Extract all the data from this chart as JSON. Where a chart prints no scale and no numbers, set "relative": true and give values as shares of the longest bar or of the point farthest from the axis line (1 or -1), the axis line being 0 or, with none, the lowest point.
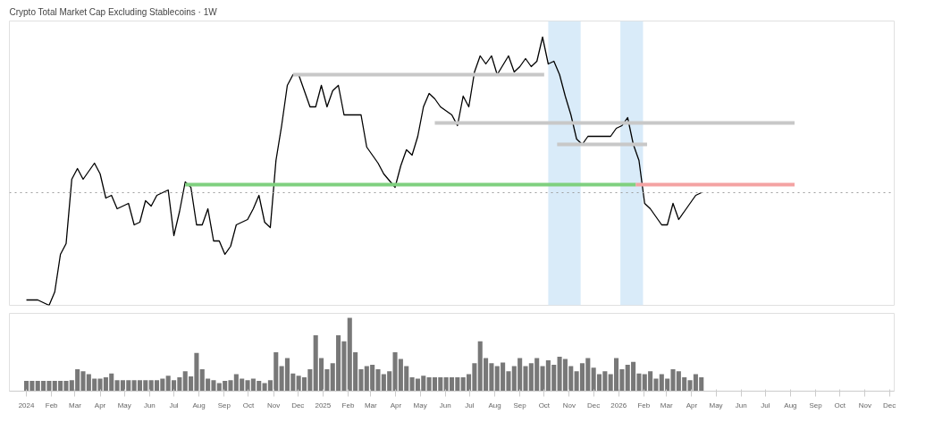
{
  "chart_data": [
    {
      "type": "line",
      "title": "Crypto Total Market Cap Excluding Stablecoins · 1W",
      "relative": true,
      "xlim": [
        "2023-12-11",
        "2026-12-07"
      ],
      "tick_labels": false,
      "series": [
        {
          "color": "#000000",
          "x": [
            "2024-01-01",
            "2024-01-15",
            "2024-01-29",
            "2024-02-05",
            "2024-02-12",
            "2024-02-19",
            "2024-02-26",
            "2024-03-04",
            "2024-03-11",
            "2024-03-25",
            "2024-04-01",
            "2024-04-08",
            "2024-04-15",
            "2024-04-22",
            "2024-05-06",
            "2024-05-13",
            "2024-05-20",
            "2024-05-27",
            "2024-06-03",
            "2024-06-10",
            "2024-06-24",
            "2024-07-01",
            "2024-07-08",
            "2024-07-15",
            "2024-07-22",
            "2024-07-29",
            "2024-08-05",
            "2024-08-12",
            "2024-08-19",
            "2024-08-26",
            "2024-09-02",
            "2024-09-09",
            "2024-09-16",
            "2024-09-30",
            "2024-10-07",
            "2024-10-14",
            "2024-10-21",
            "2024-10-28",
            "2024-11-04",
            "2024-11-11",
            "2024-11-18",
            "2024-11-25",
            "2024-12-02",
            "2024-12-16",
            "2024-12-23",
            "2024-12-30",
            "2025-01-06",
            "2025-01-13",
            "2025-01-20",
            "2025-01-27",
            "2025-02-03",
            "2025-02-17",
            "2025-02-24",
            "2025-03-03",
            "2025-03-10",
            "2025-03-17",
            "2025-03-31",
            "2025-04-07",
            "2025-04-14",
            "2025-04-21",
            "2025-04-28",
            "2025-05-05",
            "2025-05-12",
            "2025-05-19",
            "2025-05-26",
            "2025-06-09",
            "2025-06-16",
            "2025-06-23",
            "2025-06-30",
            "2025-07-07",
            "2025-07-14",
            "2025-07-21",
            "2025-07-28",
            "2025-08-04",
            "2025-08-18",
            "2025-08-25",
            "2025-09-01",
            "2025-09-08",
            "2025-09-15",
            "2025-09-22",
            "2025-09-29",
            "2025-10-06",
            "2025-10-13",
            "2025-10-20",
            "2025-10-27",
            "2025-11-03",
            "2025-11-10",
            "2025-11-17",
            "2025-11-24",
            "2025-12-01",
            "2025-12-15",
            "2025-12-22",
            "2025-12-29",
            "2026-01-05",
            "2026-01-12",
            "2026-01-19",
            "2026-01-26",
            "2026-02-02",
            "2026-02-09",
            "2026-02-16",
            "2026-02-23",
            "2026-03-02",
            "2026-03-09",
            "2026-03-16",
            "2026-03-23",
            "2026-03-30",
            "2026-04-06",
            "2026-04-13"
          ],
          "values": [
            0.02,
            0.02,
            0,
            0.05,
            0.19,
            0.23,
            0.47,
            0.51,
            0.47,
            0.53,
            0.49,
            0.4,
            0.41,
            0.36,
            0.38,
            0.3,
            0.31,
            0.39,
            0.37,
            0.41,
            0.43,
            0.26,
            0.35,
            0.46,
            0.44,
            0.3,
            0.3,
            0.36,
            0.24,
            0.24,
            0.19,
            0.22,
            0.3,
            0.32,
            0.36,
            0.41,
            0.31,
            0.29,
            0.54,
            0.67,
            0.82,
            0.86,
            0.86,
            0.74,
            0.74,
            0.82,
            0.74,
            0.8,
            0.82,
            0.71,
            0.71,
            0.71,
            0.59,
            0.56,
            0.53,
            0.49,
            0.44,
            0.52,
            0.58,
            0.56,
            0.63,
            0.74,
            0.79,
            0.77,
            0.74,
            0.71,
            0.67,
            0.78,
            0.74,
            0.87,
            0.93,
            0.9,
            0.93,
            0.86,
            0.93,
            0.87,
            0.89,
            0.92,
            0.89,
            0.91,
            1,
            0.9,
            0.91,
            0.86,
            0.78,
            0.71,
            0.62,
            0.6,
            0.63,
            0.63,
            0.63,
            0.63,
            0.66,
            0.67,
            0.7,
            0.6,
            0.54,
            0.38,
            0.36,
            0.33,
            0.3,
            0.3,
            0.38,
            0.32,
            0.35,
            0.38,
            0.41,
            0.42
          ]
        },
        {
          "color": "#7fd07f",
          "x": [
            "2024-07-15",
            "2026-01-22"
          ],
          "values": [
            0.45,
            0.45
          ]
        },
        {
          "color": "#f4a3a3",
          "x": [
            "2026-01-22",
            "2026-08-06"
          ],
          "values": [
            0.45,
            0.45
          ]
        },
        {
          "color": "#c8c8c8",
          "x": [
            "2024-11-25",
            "2025-10-01"
          ],
          "values": [
            0.86,
            0.86
          ]
        },
        {
          "color": "#c8c8c8",
          "x": [
            "2025-05-19",
            "2026-08-06"
          ],
          "values": [
            0.68,
            0.68
          ]
        },
        {
          "color": "#c8c8c8",
          "x": [
            "2025-10-17",
            "2026-02-05"
          ],
          "values": [
            0.6,
            0.6
          ]
        }
      ],
      "ref_lines": [
        {
          "axis": "y",
          "value": 0.42,
          "color": "#9e9e9e",
          "line_style": "dotted"
        }
      ],
      "bands": [
        {
          "axis": "x",
          "from": "2025-10-06",
          "to": "2025-11-15",
          "color": "#cfe6f7"
        },
        {
          "axis": "x",
          "from": "2026-01-03",
          "to": "2026-01-31",
          "color": "#cfe6f7"
        }
      ]
    },
    {
      "type": "bar",
      "relative": true,
      "xlim": [
        "2023-12-11",
        "2026-12-07"
      ],
      "tick_labels": "x",
      "xticks": [
        {
          "value": "2024-01-01",
          "label": "2024"
        },
        {
          "value": "2024-02-01",
          "label": "Feb"
        },
        {
          "value": "2024-03-01",
          "label": "Mar"
        },
        {
          "value": "2024-04-01",
          "label": "Apr"
        },
        {
          "value": "2024-05-01",
          "label": "May"
        },
        {
          "value": "2024-06-01",
          "label": "Jun"
        },
        {
          "value": "2024-07-01",
          "label": "Jul"
        },
        {
          "value": "2024-08-01",
          "label": "Aug"
        },
        {
          "value": "2024-09-01",
          "label": "Sep"
        },
        {
          "value": "2024-10-01",
          "label": "Oct"
        },
        {
          "value": "2024-11-01",
          "label": "Nov"
        },
        {
          "value": "2024-12-01",
          "label": "Dec"
        },
        {
          "value": "2025-01-01",
          "label": "2025"
        },
        {
          "value": "2025-02-01",
          "label": "Feb"
        },
        {
          "value": "2025-03-01",
          "label": "Mar"
        },
        {
          "value": "2025-04-01",
          "label": "Apr"
        },
        {
          "value": "2025-05-01",
          "label": "May"
        },
        {
          "value": "2025-06-01",
          "label": "Jun"
        },
        {
          "value": "2025-07-01",
          "label": "Jul"
        },
        {
          "value": "2025-08-01",
          "label": "Aug"
        },
        {
          "value": "2025-09-01",
          "label": "Sep"
        },
        {
          "value": "2025-10-01",
          "label": "Oct"
        },
        {
          "value": "2025-11-01",
          "label": "Nov"
        },
        {
          "value": "2025-12-01",
          "label": "Dec"
        },
        {
          "value": "2026-01-01",
          "label": "2026"
        },
        {
          "value": "2026-02-01",
          "label": "Feb"
        },
        {
          "value": "2026-03-01",
          "label": "Mar"
        },
        {
          "value": "2026-04-01",
          "label": "Apr"
        },
        {
          "value": "2026-05-01",
          "label": "May"
        },
        {
          "value": "2026-06-01",
          "label": "Jun"
        },
        {
          "value": "2026-07-01",
          "label": "Jul"
        },
        {
          "value": "2026-08-01",
          "label": "Aug"
        },
        {
          "value": "2026-09-01",
          "label": "Sep"
        },
        {
          "value": "2026-10-01",
          "label": "Oct"
        },
        {
          "value": "2026-11-01",
          "label": "Nov"
        },
        {
          "value": "2026-12-01",
          "label": "Dec"
        }
      ],
      "series": [
        {
          "color": "#787878",
          "x": [
            "2024-01-01",
            "2024-01-08",
            "2024-01-15",
            "2024-01-22",
            "2024-01-29",
            "2024-02-05",
            "2024-02-12",
            "2024-02-19",
            "2024-02-26",
            "2024-03-04",
            "2024-03-11",
            "2024-03-18",
            "2024-03-25",
            "2024-04-01",
            "2024-04-08",
            "2024-04-15",
            "2024-04-22",
            "2024-04-29",
            "2024-05-06",
            "2024-05-13",
            "2024-05-20",
            "2024-05-27",
            "2024-06-03",
            "2024-06-10",
            "2024-06-17",
            "2024-06-24",
            "2024-07-01",
            "2024-07-08",
            "2024-07-15",
            "2024-07-22",
            "2024-07-29",
            "2024-08-05",
            "2024-08-12",
            "2024-08-19",
            "2024-08-26",
            "2024-09-02",
            "2024-09-09",
            "2024-09-16",
            "2024-09-23",
            "2024-09-30",
            "2024-10-07",
            "2024-10-14",
            "2024-10-21",
            "2024-10-28",
            "2024-11-04",
            "2024-11-11",
            "2024-11-18",
            "2024-11-25",
            "2024-12-02",
            "2024-12-09",
            "2024-12-16",
            "2024-12-23",
            "2024-12-30",
            "2025-01-06",
            "2025-01-13",
            "2025-01-20",
            "2025-01-27",
            "2025-02-03",
            "2025-02-10",
            "2025-02-17",
            "2025-02-24",
            "2025-03-03",
            "2025-03-10",
            "2025-03-17",
            "2025-03-24",
            "2025-03-31",
            "2025-04-07",
            "2025-04-14",
            "2025-04-21",
            "2025-04-28",
            "2025-05-05",
            "2025-05-12",
            "2025-05-19",
            "2025-05-26",
            "2025-06-02",
            "2025-06-09",
            "2025-06-16",
            "2025-06-23",
            "2025-06-30",
            "2025-07-07",
            "2025-07-14",
            "2025-07-21",
            "2025-07-28",
            "2025-08-04",
            "2025-08-11",
            "2025-08-18",
            "2025-08-25",
            "2025-09-01",
            "2025-09-08",
            "2025-09-15",
            "2025-09-22",
            "2025-09-29",
            "2025-10-06",
            "2025-10-13",
            "2025-10-20",
            "2025-10-27",
            "2025-11-03",
            "2025-11-10",
            "2025-11-17",
            "2025-11-24",
            "2025-12-01",
            "2025-12-08",
            "2025-12-15",
            "2025-12-22",
            "2025-12-29",
            "2026-01-05",
            "2026-01-12",
            "2026-01-19",
            "2026-01-26",
            "2026-02-02",
            "2026-02-09",
            "2026-02-16",
            "2026-02-23",
            "2026-03-02",
            "2026-03-09",
            "2026-03-16",
            "2026-03-23",
            "2026-03-30",
            "2026-04-06",
            "2026-04-13"
          ],
          "values": [
            0.14,
            0.14,
            0.14,
            0.14,
            0.14,
            0.14,
            0.14,
            0.14,
            0.15,
            0.3,
            0.27,
            0.23,
            0.17,
            0.17,
            0.19,
            0.24,
            0.15,
            0.15,
            0.15,
            0.15,
            0.15,
            0.15,
            0.15,
            0.15,
            0.17,
            0.21,
            0.15,
            0.19,
            0.27,
            0.2,
            0.52,
            0.3,
            0.17,
            0.15,
            0.11,
            0.14,
            0.15,
            0.23,
            0.17,
            0.15,
            0.17,
            0.14,
            0.11,
            0.15,
            0.53,
            0.34,
            0.45,
            0.24,
            0.21,
            0.19,
            0.3,
            0.76,
            0.45,
            0.3,
            0.38,
            0.76,
            0.68,
            1,
            0.53,
            0.3,
            0.34,
            0.36,
            0.3,
            0.23,
            0.27,
            0.53,
            0.44,
            0.34,
            0.19,
            0.17,
            0.21,
            0.19,
            0.19,
            0.19,
            0.19,
            0.19,
            0.19,
            0.19,
            0.23,
            0.38,
            0.68,
            0.45,
            0.38,
            0.34,
            0.39,
            0.27,
            0.34,
            0.45,
            0.34,
            0.38,
            0.45,
            0.34,
            0.42,
            0.36,
            0.47,
            0.44,
            0.34,
            0.27,
            0.38,
            0.45,
            0.32,
            0.23,
            0.27,
            0.23,
            0.45,
            0.3,
            0.36,
            0.4,
            0.24,
            0.23,
            0.27,
            0.17,
            0.23,
            0.17,
            0.3,
            0.27,
            0.19,
            0.15,
            0.23,
            0.19
          ]
        }
      ]
    }
  ]
}
